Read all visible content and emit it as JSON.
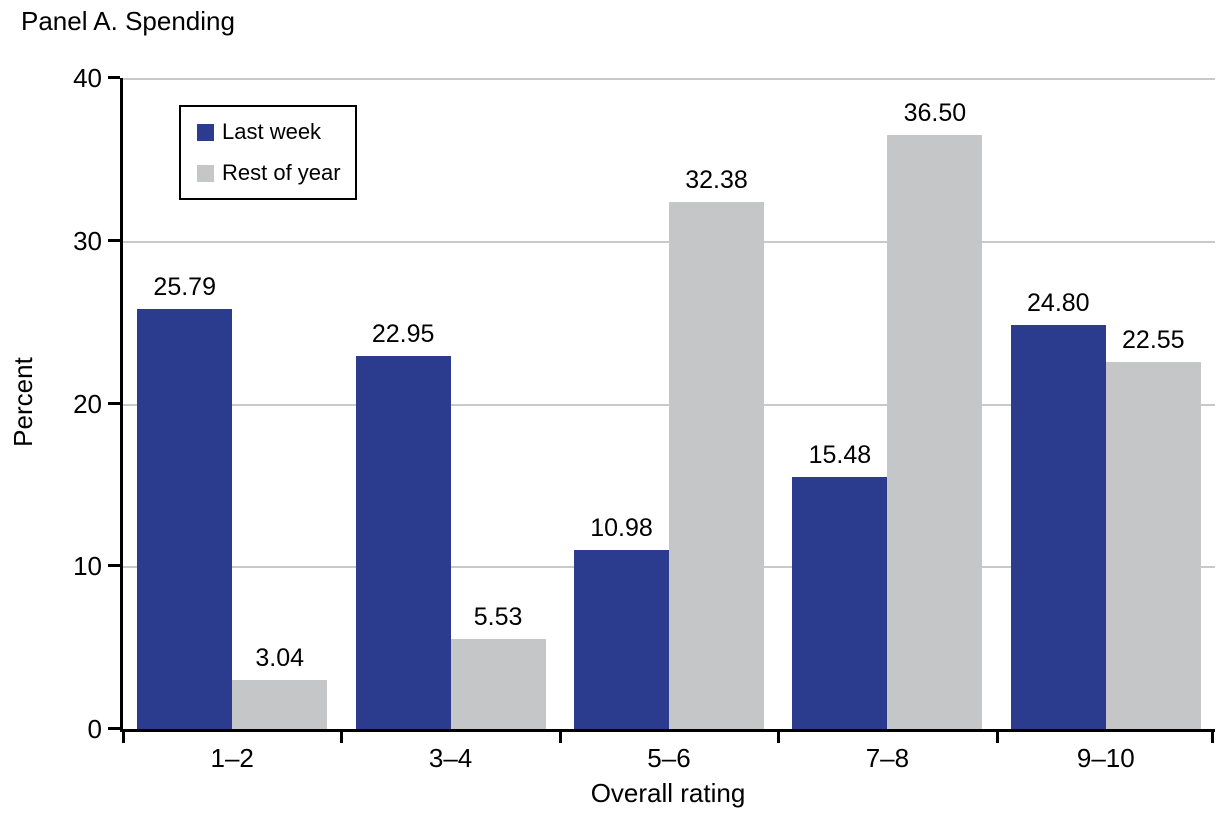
{
  "title": "Panel A. Spending",
  "chart_data": {
    "type": "bar",
    "categories": [
      "1–2",
      "3–4",
      "5–6",
      "7–8",
      "9–10"
    ],
    "series": [
      {
        "name": "Last week",
        "color": "#2b3b8e",
        "values": [
          25.79,
          22.95,
          10.98,
          15.48,
          24.8
        ]
      },
      {
        "name": "Rest of year",
        "color": "#c5c6c8",
        "values": [
          3.04,
          5.53,
          32.38,
          36.5,
          22.55
        ]
      }
    ],
    "title": "Panel A. Spending",
    "xlabel": "Overall rating",
    "ylabel": "Percent",
    "ylim": [
      0,
      40
    ],
    "yticks": [
      0,
      10,
      20,
      30,
      40
    ],
    "grid": true,
    "gridline_color": "#c9c9c9",
    "axis_color": "#000000",
    "text_color": "#000000",
    "background_color": "#ffffff",
    "legend_position": "top-left",
    "value_label_decimals": 2
  }
}
